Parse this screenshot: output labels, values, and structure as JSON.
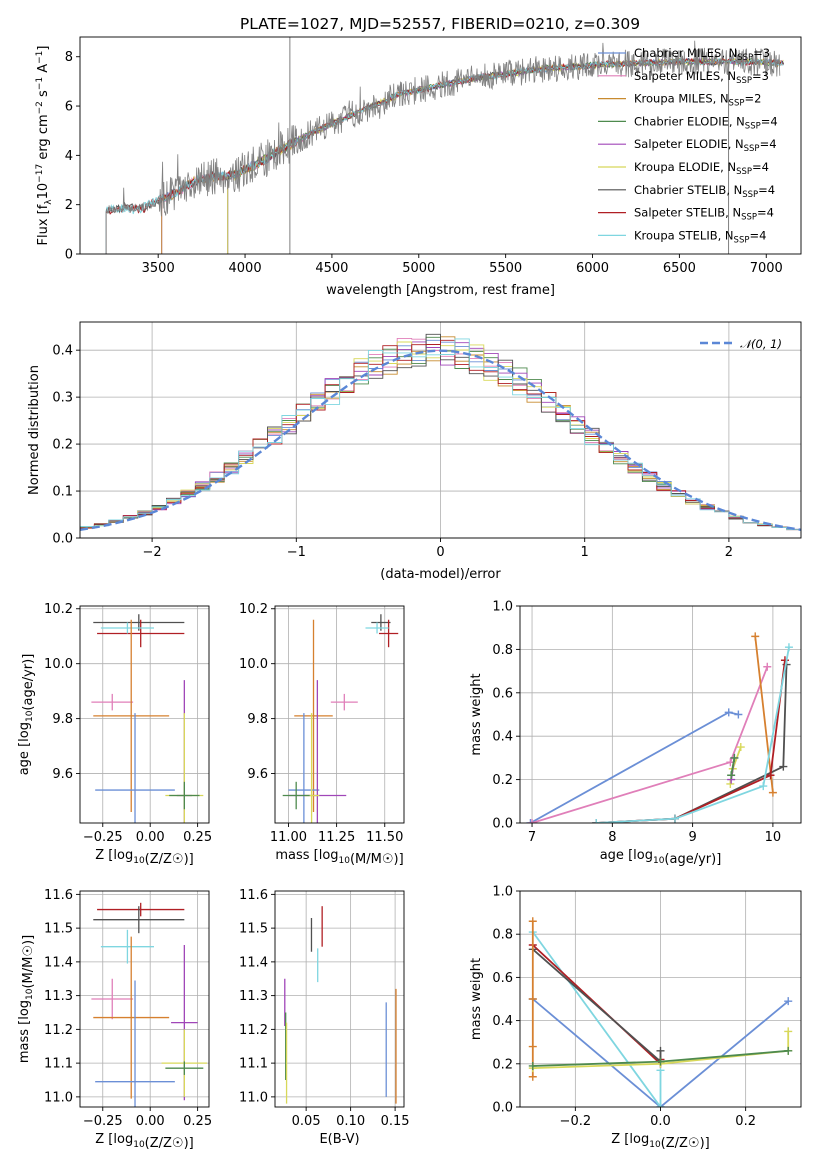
{
  "title": "PLATE=1027, MJD=52557, FIBERID=0210, z=0.309",
  "chart_data": [
    {
      "id": "spectrum",
      "type": "line",
      "xlabel": "wavelength [Angstrom, rest frame]",
      "ylabel": "Flux [f_λ 10^-17 erg cm^-2 s^-1 A^-1]",
      "xlim": [
        3050,
        7200
      ],
      "ylim": [
        0,
        8.8
      ],
      "xticks": [
        3500,
        4000,
        4500,
        5000,
        5500,
        6000,
        6500,
        7000
      ],
      "yticks": [
        0,
        2,
        4,
        6,
        8
      ],
      "grid": false,
      "legend_position": "right",
      "continuum_x": [
        3200,
        3400,
        3550,
        3700,
        3850,
        3950,
        4050,
        4150,
        4300,
        4500,
        4700,
        4900,
        5100,
        5300,
        5500,
        5700,
        5900,
        6100,
        6300,
        6500,
        6700,
        6900,
        7050
      ],
      "continuum_y": [
        1.8,
        1.85,
        2.3,
        2.9,
        3.2,
        3.2,
        3.6,
        4.0,
        4.6,
        5.3,
        5.9,
        6.5,
        6.8,
        7.1,
        7.3,
        7.5,
        7.6,
        7.7,
        7.75,
        7.8,
        7.8,
        7.8,
        7.75
      ],
      "series": [
        {
          "name": "Chabrier MILES, N_SSP=3",
          "color": "#6b8fd6",
          "x_start": 3520
        },
        {
          "name": "Salpeter MILES, N_SSP=3",
          "color": "#e07fb9",
          "x_start": 3520
        },
        {
          "name": "Kroupa MILES, N_SSP=2",
          "color": "#c88a2f",
          "x_start": 3520
        },
        {
          "name": "Chabrier ELODIE, N_SSP=4",
          "color": "#4e8a4e",
          "x_start": 3900
        },
        {
          "name": "Salpeter ELODIE, N_SSP=4",
          "color": "#a046b8",
          "x_start": 3900
        },
        {
          "name": "Kroupa ELODIE, N_SSP=4",
          "color": "#d8d85a",
          "x_start": 3900
        },
        {
          "name": "Chabrier STELIB, N_SSP=4",
          "color": "#505050",
          "x_start": 3200
        },
        {
          "name": "Salpeter STELIB, N_SSP=4",
          "color": "#b01f24",
          "x_start": 3200
        },
        {
          "name": "Kroupa STELIB, N_SSP=4",
          "color": "#7fd6e0",
          "x_start": 3200
        }
      ],
      "data_color": "#808080"
    },
    {
      "id": "residuals",
      "type": "histogram",
      "xlabel": "(data-model)/error",
      "ylabel": "Normed distribution",
      "xlim": [
        -2.5,
        2.5
      ],
      "ylim": [
        0,
        0.46
      ],
      "xticks": [
        -2,
        -1,
        0,
        1,
        2
      ],
      "yticks": [
        0.0,
        0.1,
        0.2,
        0.3,
        0.4
      ],
      "grid": true,
      "legend": "𝒩(0, 1)",
      "legend_position": "top-right",
      "normal_curve_color": "#5b87d6"
    },
    {
      "id": "age-vs-Z",
      "type": "errorbar",
      "xlabel": "Z [log10(Z/Z☉)]",
      "ylabel": "age [log10(age/yr)]",
      "xlim": [
        -0.37,
        0.31
      ],
      "ylim": [
        9.42,
        10.21
      ],
      "xticks": [
        -0.25,
        0.0,
        0.25
      ],
      "yticks": [
        9.6,
        9.8,
        10.0,
        10.2
      ],
      "grid": true,
      "points": [
        {
          "color": "#505050",
          "x": -0.06,
          "xerr": 0.24,
          "y": 10.15,
          "yerr": 0.03
        },
        {
          "color": "#b01f24",
          "x": -0.05,
          "xerr": 0.23,
          "y": 10.11,
          "yerr": 0.05
        },
        {
          "color": "#7fd6e0",
          "x": -0.12,
          "xerr": 0.14,
          "y": 10.13,
          "yerr": 0.02
        },
        {
          "color": "#e07fb9",
          "x": -0.2,
          "xerr": 0.11,
          "y": 9.86,
          "yerr": 0.03
        },
        {
          "color": "#d6802f",
          "x": -0.1,
          "xerr": 0.2,
          "y": 9.81,
          "yerr": 0.35
        },
        {
          "color": "#6b8fd6",
          "x": -0.08,
          "xerr": 0.21,
          "y": 9.54,
          "yerr": 0.28
        },
        {
          "color": "#a046b8",
          "x": 0.18,
          "xerr": 0.04,
          "y": 9.52,
          "yerr": 0.42
        },
        {
          "color": "#d8d85a",
          "x": 0.18,
          "xerr": 0.1,
          "y": 9.52,
          "yerr": 0.3
        },
        {
          "color": "#4e8a4e",
          "x": 0.18,
          "xerr": 0.08,
          "y": 9.52,
          "yerr": 0.05
        }
      ]
    },
    {
      "id": "age-vs-mass",
      "type": "errorbar",
      "xlabel": "mass [log10(M/M☉)]",
      "ylabel": "",
      "xlim": [
        10.93,
        11.6
      ],
      "ylim": [
        9.42,
        10.21
      ],
      "xticks": [
        11.0,
        11.25,
        11.5
      ],
      "yticks": [
        9.6,
        9.8,
        10.0,
        10.2
      ],
      "grid": true,
      "points": [
        {
          "color": "#505050",
          "x": 11.48,
          "xerr": 0.05,
          "y": 10.15,
          "yerr": 0.03
        },
        {
          "color": "#b01f24",
          "x": 11.52,
          "xerr": 0.05,
          "y": 10.11,
          "yerr": 0.05
        },
        {
          "color": "#7fd6e0",
          "x": 11.46,
          "xerr": 0.06,
          "y": 10.13,
          "yerr": 0.02
        },
        {
          "color": "#e07fb9",
          "x": 11.29,
          "xerr": 0.07,
          "y": 9.86,
          "yerr": 0.03
        },
        {
          "color": "#d6802f",
          "x": 11.13,
          "xerr": 0.1,
          "y": 9.81,
          "yerr": 0.35
        },
        {
          "color": "#6b8fd6",
          "x": 11.08,
          "xerr": 0.08,
          "y": 9.54,
          "yerr": 0.28
        },
        {
          "color": "#a046b8",
          "x": 11.15,
          "xerr": 0.15,
          "y": 9.52,
          "yerr": 0.42
        },
        {
          "color": "#d8d85a",
          "x": 11.12,
          "xerr": 0.04,
          "y": 9.52,
          "yerr": 0.3
        },
        {
          "color": "#4e8a4e",
          "x": 11.04,
          "xerr": 0.07,
          "y": 9.52,
          "yerr": 0.05
        }
      ]
    },
    {
      "id": "massweight-vs-age",
      "type": "line",
      "xlabel": "age [log10(age/yr)]",
      "ylabel": "mass weight",
      "xlim": [
        6.85,
        10.35
      ],
      "ylim": [
        0,
        1.0
      ],
      "xticks": [
        7,
        8,
        9,
        10
      ],
      "yticks": [
        0.0,
        0.2,
        0.4,
        0.6,
        0.8,
        1.0
      ],
      "grid": true,
      "series": [
        {
          "color": "#6b8fd6",
          "x": [
            6.98,
            9.45,
            9.57
          ],
          "y": [
            0.0,
            0.51,
            0.5
          ]
        },
        {
          "color": "#e07fb9",
          "x": [
            7.0,
            9.47,
            9.93
          ],
          "y": [
            0.0,
            0.28,
            0.72
          ]
        },
        {
          "color": "#d6802f",
          "x": [
            9.78,
            10.0
          ],
          "y": [
            0.86,
            0.14
          ]
        },
        {
          "color": "#505050",
          "x": [
            7.8,
            8.78,
            10.13,
            10.17
          ],
          "y": [
            0.0,
            0.02,
            0.26,
            0.73
          ]
        },
        {
          "color": "#b01f24",
          "x": [
            7.8,
            8.78,
            9.97,
            10.15
          ],
          "y": [
            0.0,
            0.02,
            0.22,
            0.75
          ]
        },
        {
          "color": "#7fd6e0",
          "x": [
            7.8,
            8.78,
            9.88,
            10.2
          ],
          "y": [
            0.0,
            0.02,
            0.17,
            0.81
          ]
        },
        {
          "color": "#d8d85a",
          "x": [
            9.47,
            9.5,
            9.6
          ],
          "y": [
            0.18,
            0.25,
            0.35
          ]
        },
        {
          "color": "#a046b8",
          "x": [
            9.48,
            9.52
          ],
          "y": [
            0.2,
            0.3
          ]
        },
        {
          "color": "#4e8a4e",
          "x": [
            9.48,
            9.52
          ],
          "y": [
            0.22,
            0.3
          ]
        }
      ]
    },
    {
      "id": "mass-vs-Z",
      "type": "errorbar",
      "xlabel": "Z [log10(Z/Z☉)]",
      "ylabel": "mass [log10(M/M☉)]",
      "xlim": [
        -0.37,
        0.31
      ],
      "ylim": [
        10.97,
        11.61
      ],
      "xticks": [
        -0.25,
        0.0,
        0.25
      ],
      "yticks": [
        11.0,
        11.1,
        11.2,
        11.3,
        11.4,
        11.5,
        11.6
      ],
      "grid": true,
      "points": [
        {
          "color": "#b01f24",
          "x": -0.05,
          "xerr": 0.23,
          "y": 11.555,
          "yerr": 0.02
        },
        {
          "color": "#505050",
          "x": -0.06,
          "xerr": 0.24,
          "y": 11.525,
          "yerr": 0.04
        },
        {
          "color": "#7fd6e0",
          "x": -0.12,
          "xerr": 0.14,
          "y": 11.445,
          "yerr": 0.05
        },
        {
          "color": "#e07fb9",
          "x": -0.2,
          "xerr": 0.11,
          "y": 11.29,
          "yerr": 0.06
        },
        {
          "color": "#d6802f",
          "x": -0.1,
          "xerr": 0.2,
          "y": 11.235,
          "yerr": 0.24
        },
        {
          "color": "#a046b8",
          "x": 0.18,
          "xerr": 0.07,
          "y": 11.22,
          "yerr": 0.23
        },
        {
          "color": "#6b8fd6",
          "x": -0.08,
          "xerr": 0.21,
          "y": 11.045,
          "yerr": 0.3
        },
        {
          "color": "#d8d85a",
          "x": 0.18,
          "xerr": 0.12,
          "y": 11.1,
          "yerr": 0.1
        },
        {
          "color": "#4e8a4e",
          "x": 0.18,
          "xerr": 0.1,
          "y": 11.085,
          "yerr": 0.02
        }
      ]
    },
    {
      "id": "mass-vs-ebv",
      "type": "errorbar",
      "xlabel": "E(B-V)",
      "ylabel": "",
      "xlim": [
        0.015,
        0.16
      ],
      "ylim": [
        10.97,
        11.61
      ],
      "xticks": [
        0.05,
        0.1,
        0.15
      ],
      "yticks": [
        11.0,
        11.1,
        11.2,
        11.3,
        11.4,
        11.5,
        11.6
      ],
      "grid": true,
      "points": [
        {
          "color": "#b01f24",
          "x": 0.068,
          "y": 11.505,
          "yerr": 0.06
        },
        {
          "color": "#505050",
          "x": 0.056,
          "y": 11.48,
          "yerr": 0.05
        },
        {
          "color": "#7fd6e0",
          "x": 0.063,
          "y": 11.39,
          "yerr": 0.05
        },
        {
          "color": "#a046b8",
          "x": 0.026,
          "y": 11.28,
          "yerr": 0.07
        },
        {
          "color": "#4e8a4e",
          "x": 0.027,
          "y": 11.15,
          "yerr": 0.1
        },
        {
          "color": "#d8d85a",
          "x": 0.028,
          "y": 11.1,
          "yerr": 0.12
        },
        {
          "color": "#6b8fd6",
          "x": 0.14,
          "y": 11.14,
          "yerr": 0.14
        },
        {
          "color": "#d6802f",
          "x": 0.151,
          "y": 11.15,
          "yerr": 0.17
        }
      ]
    },
    {
      "id": "massweight-vs-Z",
      "type": "line",
      "xlabel": "Z [log10(Z/Z☉)]",
      "ylabel": "mass weight",
      "xlim": [
        -0.33,
        0.33
      ],
      "ylim": [
        0,
        1.0
      ],
      "xticks": [
        -0.2,
        0.0,
        0.2
      ],
      "yticks": [
        0.0,
        0.2,
        0.4,
        0.6,
        0.8,
        1.0
      ],
      "grid": true,
      "series": [
        {
          "color": "#6b8fd6",
          "x": [
            -0.3,
            0.0,
            0.3
          ],
          "y": [
            0.5,
            0.0,
            0.49
          ]
        },
        {
          "color": "#7fd6e0",
          "x": [
            -0.3,
            0.0,
            0.0
          ],
          "y": [
            0.81,
            0.0,
            0.17
          ]
        },
        {
          "color": "#b01f24",
          "x": [
            -0.3,
            0.0,
            0.0
          ],
          "y": [
            0.75,
            0.2,
            0.22
          ]
        },
        {
          "color": "#505050",
          "x": [
            -0.3,
            0.0,
            0.0
          ],
          "y": [
            0.73,
            0.21,
            0.26
          ]
        },
        {
          "color": "#d6802f",
          "x": [
            -0.3,
            -0.3,
            -0.3,
            -0.3
          ],
          "y": [
            0.86,
            0.5,
            0.28,
            0.14
          ]
        },
        {
          "color": "#d8d85a",
          "x": [
            -0.3,
            0.0,
            0.3,
            0.3
          ],
          "y": [
            0.18,
            0.2,
            0.26,
            0.35
          ]
        },
        {
          "color": "#4e8a4e",
          "x": [
            -0.3,
            0.0,
            0.3
          ],
          "y": [
            0.19,
            0.21,
            0.26
          ]
        }
      ]
    }
  ]
}
